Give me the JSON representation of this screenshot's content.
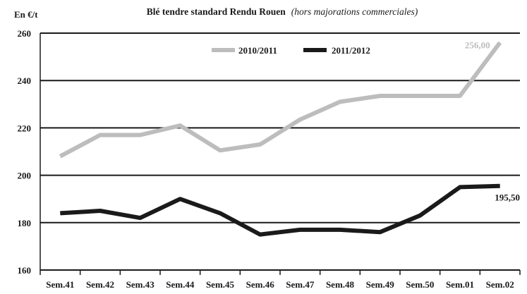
{
  "chart_data": {
    "type": "line",
    "title": "Blé tendre standard Rendu Rouen",
    "subtitle": "(hors majorations commerciales)",
    "ylabel": "En €/t",
    "xlabel": "",
    "categories": [
      "Sem.41",
      "Sem.42",
      "Sem.43",
      "Sem.44",
      "Sem.45",
      "Sem.46",
      "Sem.47",
      "Sem.48",
      "Sem.49",
      "Sem.50",
      "Sem.01",
      "Sem.02"
    ],
    "ylim": [
      160,
      260
    ],
    "yticks": [
      160,
      180,
      200,
      220,
      240,
      260
    ],
    "grid": "horizontal",
    "legend_position": "top-right",
    "series": [
      {
        "name": "2010/2011",
        "color": "#bdbdbd",
        "values": [
          208,
          217,
          217,
          221,
          210.5,
          213,
          223.5,
          231,
          233.5,
          233.5,
          233.5,
          256
        ],
        "end_label": "256,00"
      },
      {
        "name": "2011/2012",
        "color": "#1a1a1a",
        "values": [
          184,
          185,
          182,
          190,
          184,
          175,
          177,
          177,
          176,
          183,
          195,
          195.5
        ],
        "end_label": "195,50"
      }
    ]
  }
}
